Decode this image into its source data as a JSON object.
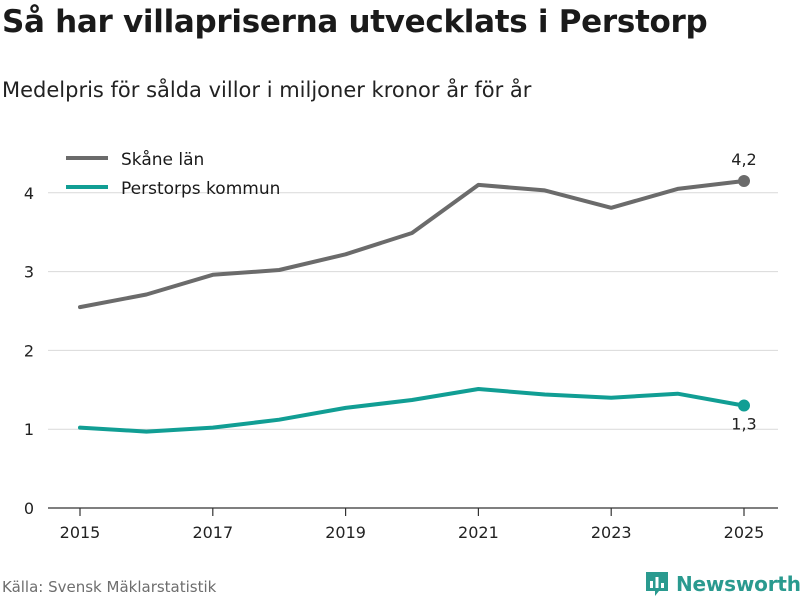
{
  "header": {
    "title": "Så har villapriserna utvecklats i Perstorp",
    "subtitle": "Medelpris för sålda villor i miljoner kronor år för år"
  },
  "footer": {
    "source": "Källa: Svensk Mäklarstatistik",
    "brand": "Newsworthy"
  },
  "chart_data": {
    "type": "line",
    "title": "Så har villapriserna utvecklats i Perstorp",
    "subtitle": "Medelpris för sålda villor i miljoner kronor år för år",
    "xlabel": "",
    "ylabel": "",
    "x": [
      2015,
      2016,
      2017,
      2018,
      2019,
      2020,
      2021,
      2022,
      2023,
      2024,
      2025
    ],
    "xticks": [
      "2015",
      "2017",
      "2019",
      "2021",
      "2023",
      "2025"
    ],
    "yticks": [
      "0",
      "1",
      "2",
      "3",
      "4"
    ],
    "xlim": [
      2015,
      2025
    ],
    "ylim": [
      0,
      4.2
    ],
    "grid": true,
    "legend_position": "top-left",
    "series": [
      {
        "name": "Skåne län",
        "color": "#6b6b6b",
        "values": [
          2.55,
          2.71,
          2.96,
          3.02,
          3.22,
          3.49,
          4.1,
          4.03,
          3.81,
          4.05,
          4.15
        ],
        "end_label": "4,2"
      },
      {
        "name": "Perstorps kommun",
        "color": "#119e94",
        "values": [
          1.02,
          0.97,
          1.02,
          1.12,
          1.27,
          1.37,
          1.51,
          1.44,
          1.4,
          1.45,
          1.3
        ],
        "end_label": "1,3"
      }
    ]
  }
}
